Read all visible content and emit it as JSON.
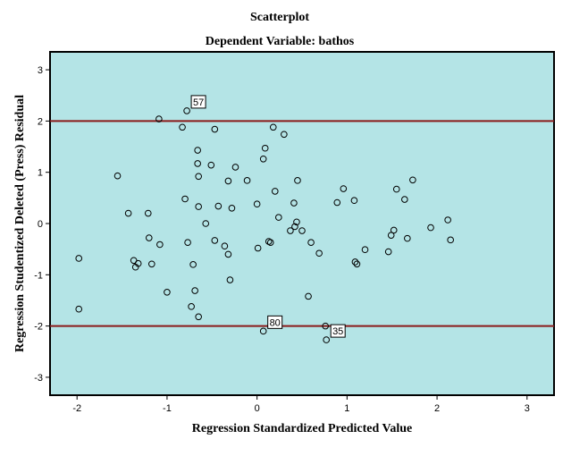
{
  "chart_data": {
    "type": "scatter",
    "title": "Scatterplot",
    "subtitle": "Dependent Variable: bathos",
    "xlabel": "Regression Standardized Predicted Value",
    "ylabel": "Regression Studentized Deleted (Press) Residual",
    "xlim": [
      -2.3,
      3.3
    ],
    "ylim": [
      -3.35,
      3.35
    ],
    "xticks": [
      -2,
      -1,
      0,
      1,
      2,
      3
    ],
    "yticks": [
      -3,
      -2,
      -1,
      0,
      1,
      2,
      3
    ],
    "grid": false,
    "plot_background": "#b4e4e6",
    "marker_color": "#000000",
    "reference_line_color": "#8b1a1a",
    "reference_lines_y": [
      2,
      -2
    ],
    "annotations": [
      {
        "label": "57",
        "x": -0.78,
        "y": 2.2
      },
      {
        "label": "80",
        "x": 0.07,
        "y": -2.1
      },
      {
        "label": "35",
        "x": 0.77,
        "y": -2.27
      }
    ],
    "points": [
      [
        -1.98,
        -0.68
      ],
      [
        -1.98,
        -1.67
      ],
      [
        -1.55,
        0.93
      ],
      [
        -1.43,
        0.2
      ],
      [
        -1.37,
        -0.72
      ],
      [
        -1.35,
        -0.85
      ],
      [
        -1.32,
        -0.78
      ],
      [
        -1.21,
        0.2
      ],
      [
        -1.2,
        -0.28
      ],
      [
        -1.17,
        -0.79
      ],
      [
        -1.09,
        2.04
      ],
      [
        -1.08,
        -0.41
      ],
      [
        -1.0,
        -1.34
      ],
      [
        -0.83,
        1.88
      ],
      [
        -0.8,
        0.48
      ],
      [
        -0.78,
        2.2
      ],
      [
        -0.77,
        -0.37
      ],
      [
        -0.73,
        -1.62
      ],
      [
        -0.71,
        -0.8
      ],
      [
        -0.69,
        -1.31
      ],
      [
        -0.66,
        1.43
      ],
      [
        -0.66,
        1.17
      ],
      [
        -0.65,
        0.92
      ],
      [
        -0.65,
        0.33
      ],
      [
        -0.65,
        -1.82
      ],
      [
        -0.57,
        0.0
      ],
      [
        -0.51,
        1.14
      ],
      [
        -0.47,
        1.84
      ],
      [
        -0.47,
        -0.33
      ],
      [
        -0.43,
        0.34
      ],
      [
        -0.36,
        -0.44
      ],
      [
        -0.32,
        0.83
      ],
      [
        -0.32,
        -0.6
      ],
      [
        -0.3,
        -1.1
      ],
      [
        -0.28,
        0.3
      ],
      [
        -0.24,
        1.1
      ],
      [
        -0.11,
        0.84
      ],
      [
        0.0,
        0.38
      ],
      [
        0.01,
        -0.48
      ],
      [
        0.07,
        1.26
      ],
      [
        0.07,
        -2.1
      ],
      [
        0.09,
        1.47
      ],
      [
        0.13,
        -0.35
      ],
      [
        0.15,
        -0.37
      ],
      [
        0.18,
        1.88
      ],
      [
        0.2,
        0.63
      ],
      [
        0.24,
        0.12
      ],
      [
        0.3,
        1.74
      ],
      [
        0.37,
        -0.14
      ],
      [
        0.41,
        0.4
      ],
      [
        0.42,
        -0.06
      ],
      [
        0.44,
        0.03
      ],
      [
        0.45,
        0.84
      ],
      [
        0.5,
        -0.14
      ],
      [
        0.57,
        -1.42
      ],
      [
        0.6,
        -0.37
      ],
      [
        0.69,
        -0.58
      ],
      [
        0.76,
        -2.0
      ],
      [
        0.77,
        -2.27
      ],
      [
        0.89,
        0.41
      ],
      [
        0.96,
        0.68
      ],
      [
        1.08,
        0.45
      ],
      [
        1.09,
        -0.75
      ],
      [
        1.11,
        -0.79
      ],
      [
        1.2,
        -0.51
      ],
      [
        1.46,
        -0.55
      ],
      [
        1.49,
        -0.23
      ],
      [
        1.52,
        -0.13
      ],
      [
        1.55,
        0.67
      ],
      [
        1.64,
        0.47
      ],
      [
        1.67,
        -0.29
      ],
      [
        1.73,
        0.85
      ],
      [
        1.93,
        -0.08
      ],
      [
        2.12,
        0.07
      ],
      [
        2.15,
        -0.32
      ]
    ]
  }
}
